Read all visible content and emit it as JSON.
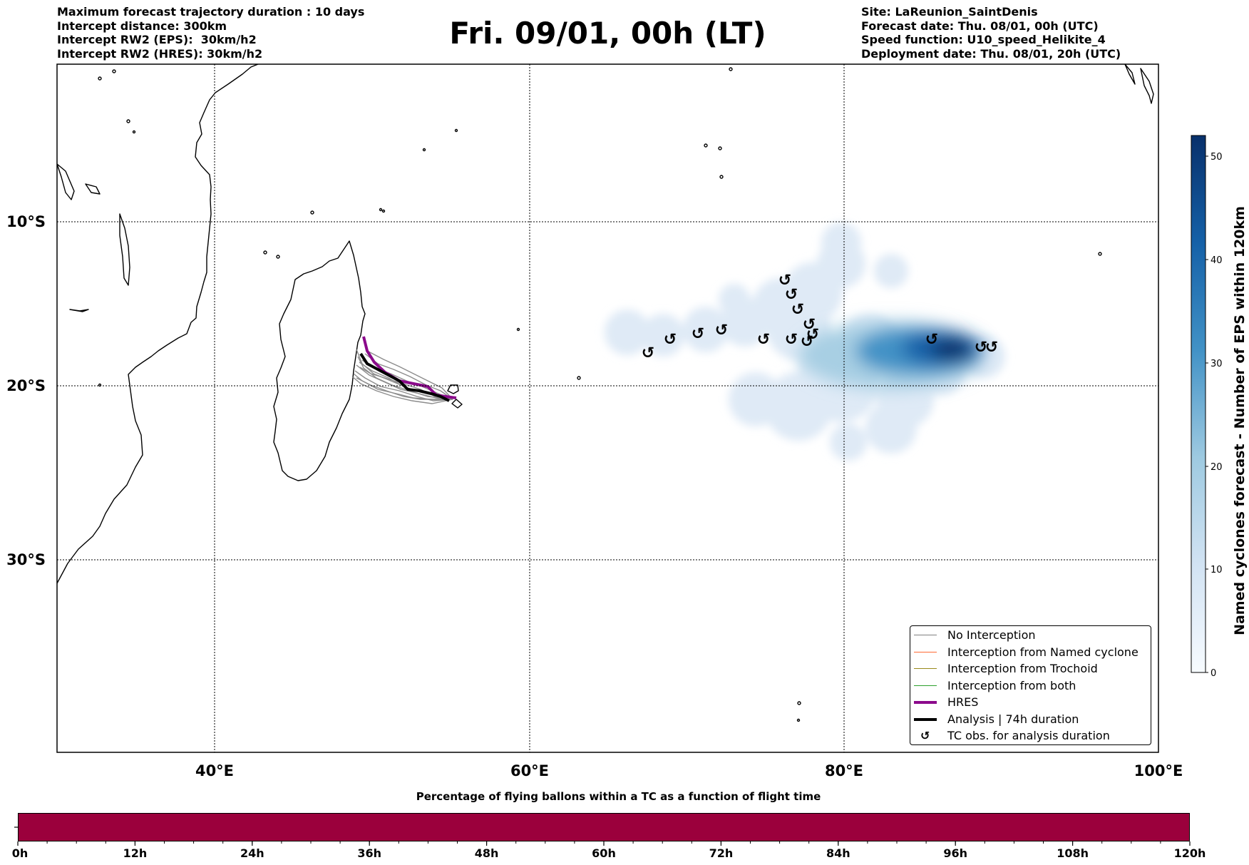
{
  "header": {
    "left": [
      "Maximum forecast trajectory duration : 10 days",
      "Intercept distance: 300km",
      "Intercept RW2 (EPS):  30km/h2",
      "Intercept RW2 (HRES): 30km/h2"
    ],
    "title": "Fri. 09/01, 00h (LT)",
    "right": [
      "Site: LaReunion_SaintDenis",
      "Forecast date: Thu. 08/01, 00h (UTC)",
      "Speed function: U10_speed_Helikite_4",
      "Deployment date: Thu. 08/01, 20h (UTC)"
    ]
  },
  "map": {
    "lon_ticks": [
      "40°E",
      "60°E",
      "80°E",
      "100°E"
    ],
    "lat_ticks": [
      "10°S",
      "20°S",
      "30°S"
    ],
    "tc_symbol": "↺"
  },
  "colorbar": {
    "label": "Named cyclones forecast - Number of EPS within 120km",
    "ticks": [
      "0",
      "10",
      "20",
      "30",
      "40",
      "50"
    ],
    "range": [
      0,
      52
    ]
  },
  "legend": {
    "items": [
      {
        "label": "No Interception",
        "color": "#808080"
      },
      {
        "label": "Interception from Named cyclone",
        "color": "#ff6a33"
      },
      {
        "label": "Interception from Trochoid",
        "color": "#9a8a1a"
      },
      {
        "label": "Interception from both",
        "color": "#2ca02c"
      },
      {
        "label": "HRES",
        "color": "#8b0a8b"
      },
      {
        "label": "Analysis | 74h duration",
        "color": "#000000"
      }
    ],
    "tc_label": "TC obs. for analysis duration"
  },
  "bottom_bar": {
    "title": "Percentage of flying ballons within a TC as a function of flight time",
    "color": "#9b003c",
    "ticks": [
      "0h",
      "12h",
      "24h",
      "36h",
      "48h",
      "60h",
      "72h",
      "84h",
      "96h",
      "108h",
      "120h"
    ]
  }
}
